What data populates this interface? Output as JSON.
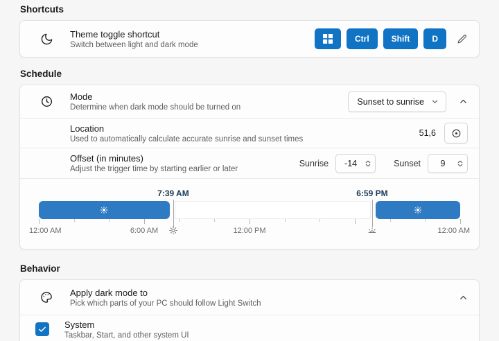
{
  "colors": {
    "accent": "#1173c4",
    "bar": "#2f7bc3"
  },
  "shortcuts": {
    "header": "Shortcuts",
    "theme_toggle": {
      "title": "Theme toggle shortcut",
      "subtitle": "Switch between light and dark mode",
      "keys": {
        "win_icon": "windows-logo",
        "ctrl": "Ctrl",
        "shift": "Shift",
        "d": "D"
      }
    }
  },
  "schedule": {
    "header": "Schedule",
    "mode": {
      "title": "Mode",
      "subtitle": "Determine when dark mode should be turned on",
      "dropdown_value": "Sunset to sunrise"
    },
    "location": {
      "title": "Location",
      "subtitle": "Used to automatically calculate accurate sunrise and sunset times",
      "value": "51,6"
    },
    "offset": {
      "title": "Offset (in minutes)",
      "subtitle": "Adjust the trigger time by starting earlier or later",
      "sunrise_label": "Sunrise",
      "sunrise_value": "-14",
      "sunset_label": "Sunset",
      "sunset_value": "9"
    },
    "timeline": {
      "sunrise_time": "7:39 AM",
      "sunset_time": "6:59 PM",
      "sunrise_pct": 31.9,
      "sunset_pct": 79.1,
      "axis": {
        "start": "12:00 AM",
        "six_am": "6:00 AM",
        "noon": "12:00 PM",
        "end": "12:00 AM"
      }
    }
  },
  "behavior": {
    "header": "Behavior",
    "apply": {
      "title": "Apply dark mode to",
      "subtitle": "Pick which parts of your PC should follow Light Switch"
    },
    "system": {
      "title": "System",
      "subtitle": "Taskbar, Start, and other system UI",
      "checked": true
    }
  }
}
